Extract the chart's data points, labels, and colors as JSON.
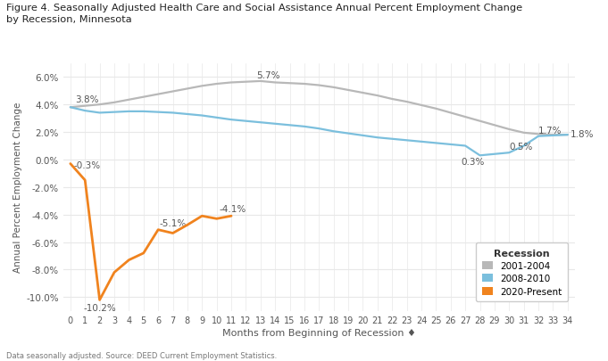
{
  "title": "Figure 4. Seasonally Adjusted Health Care and Social Assistance Annual Percent Employment Change\nby Recession, Minnesota",
  "xlabel": "Months from Beginning of Recession ♦",
  "ylabel": "Annual Percent Employment Change",
  "footnote": "Data seasonally adjusted. Source: DEED Current Employment Statistics.",
  "xlim": [
    -0.5,
    34.5
  ],
  "ylim": [
    -11,
    7
  ],
  "yticks": [
    -10,
    -8,
    -6,
    -4,
    -2,
    0,
    2,
    4,
    6
  ],
  "ytick_labels": [
    "-10.0%",
    "-8.0%",
    "-6.0%",
    "-4.0%",
    "-2.0%",
    "0.0%",
    "2.0%",
    "4.0%",
    "6.0%"
  ],
  "xticks": [
    0,
    1,
    2,
    3,
    4,
    5,
    6,
    7,
    8,
    9,
    10,
    11,
    12,
    13,
    14,
    15,
    16,
    17,
    18,
    19,
    20,
    21,
    22,
    23,
    24,
    25,
    26,
    27,
    28,
    29,
    30,
    31,
    32,
    33,
    34
  ],
  "recession_2001": {
    "x": [
      0,
      1,
      2,
      3,
      4,
      5,
      6,
      7,
      8,
      9,
      10,
      11,
      12,
      13,
      14,
      15,
      16,
      17,
      18,
      19,
      20,
      21,
      22,
      23,
      24,
      25,
      26,
      27,
      28,
      29,
      30,
      31,
      32,
      33,
      34
    ],
    "y": [
      3.8,
      3.9,
      4.0,
      4.15,
      4.35,
      4.55,
      4.75,
      4.95,
      5.15,
      5.35,
      5.5,
      5.6,
      5.65,
      5.7,
      5.6,
      5.55,
      5.5,
      5.4,
      5.25,
      5.05,
      4.85,
      4.65,
      4.4,
      4.2,
      3.95,
      3.7,
      3.4,
      3.1,
      2.8,
      2.5,
      2.2,
      1.95,
      1.85,
      1.8,
      1.8
    ],
    "color": "#b8b8b8",
    "label": "2001-2004"
  },
  "recession_2008": {
    "x": [
      0,
      1,
      2,
      3,
      4,
      5,
      6,
      7,
      8,
      9,
      10,
      11,
      12,
      13,
      14,
      15,
      16,
      17,
      18,
      19,
      20,
      21,
      22,
      23,
      24,
      25,
      26,
      27,
      28,
      29,
      30,
      31,
      32,
      33,
      34
    ],
    "y": [
      3.8,
      3.55,
      3.4,
      3.45,
      3.5,
      3.5,
      3.45,
      3.4,
      3.3,
      3.2,
      3.05,
      2.9,
      2.8,
      2.7,
      2.6,
      2.5,
      2.4,
      2.25,
      2.05,
      1.9,
      1.75,
      1.6,
      1.5,
      1.4,
      1.3,
      1.2,
      1.1,
      1.0,
      0.3,
      0.4,
      0.5,
      1.0,
      1.7,
      1.75,
      1.8
    ],
    "color": "#7bbfdd",
    "label": "2008-2010"
  },
  "recession_2020": {
    "x": [
      0,
      1,
      2,
      3,
      4,
      5,
      6,
      7,
      8,
      9,
      10,
      11
    ],
    "y": [
      -0.3,
      -1.5,
      -10.2,
      -8.2,
      -7.3,
      -6.8,
      -5.1,
      -5.35,
      -4.75,
      -4.1,
      -4.3,
      -4.1
    ],
    "color": "#f0831e",
    "label": "2020-Present"
  },
  "background_color": "#ffffff",
  "plot_bg_color": "#ffffff",
  "grid_color": "#e8e8e8",
  "legend_title": "Recession",
  "legend_labels": [
    "2001-2004",
    "2008-2010",
    "2020-Present"
  ],
  "legend_colors": [
    "#b8b8b8",
    "#7bbfdd",
    "#f0831e"
  ],
  "text_color": "#555555",
  "annotation_color": "#555555"
}
